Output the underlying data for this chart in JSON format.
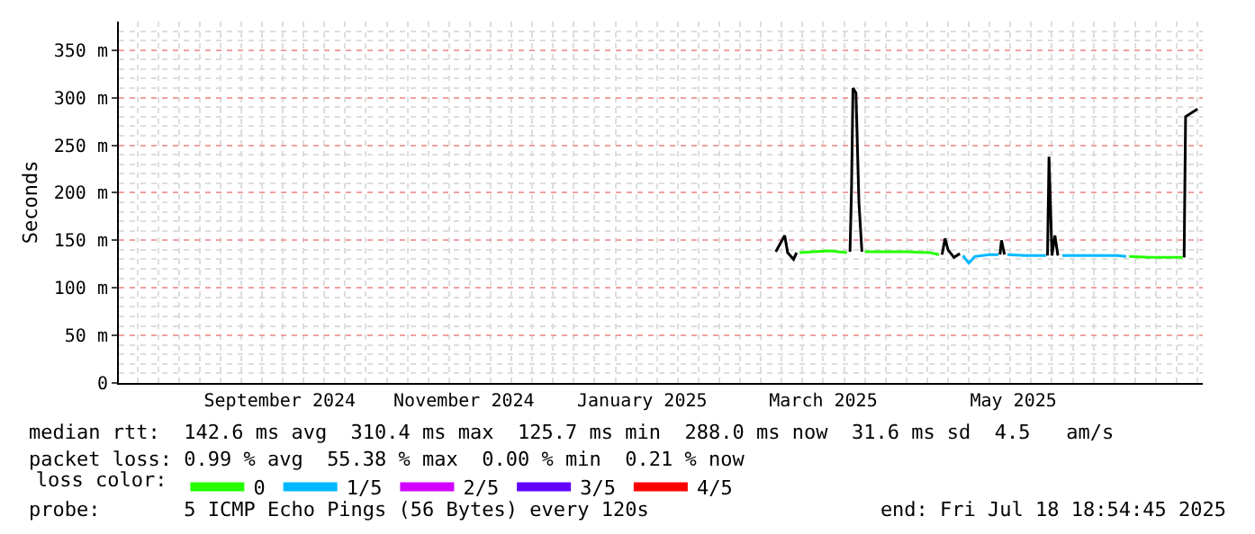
{
  "chart_data": {
    "type": "line",
    "ylabel": "Seconds",
    "legend_title": "loss color:",
    "legend": "bottom",
    "grid": true,
    "line_style": "solid",
    "xlim": [
      "2024-07-18T18:54",
      "2025-07-18T18:54"
    ],
    "xticks": [
      {
        "value": "2024-09-11",
        "label": "September 2024"
      },
      {
        "value": "2024-11-12",
        "label": "November 2024"
      },
      {
        "value": "2025-01-11",
        "label": "January 2025"
      },
      {
        "value": "2025-03-13",
        "label": "March 2025"
      },
      {
        "value": "2025-05-16",
        "label": "May 2025"
      }
    ],
    "ylim": [
      0,
      380
    ],
    "yticks": [
      0,
      {
        "value": 50,
        "label": "50 m"
      },
      {
        "value": 100,
        "label": "100 m"
      },
      {
        "value": 150,
        "label": "150 m"
      },
      {
        "value": 200,
        "label": "200 m"
      },
      {
        "value": 250,
        "label": "250 m"
      },
      {
        "value": 300,
        "label": "300 m"
      },
      {
        "value": 350,
        "label": "350 m"
      }
    ],
    "series": [
      {
        "color": "#000000",
        "x": [
          "2025-02-25",
          "2025-02-28",
          "2025-03-01",
          "2025-03-03",
          "2025-03-04",
          "2025-03-05",
          "2025-03-22",
          "2025-03-22T12:00",
          "2025-03-23",
          "2025-03-24",
          "2025-03-25",
          "2025-03-26",
          "2025-03-27",
          "2025-04-22",
          "2025-04-23",
          "2025-04-24",
          "2025-04-26",
          "2025-04-28",
          "2025-04-29",
          "2025-05-11T12:00",
          "2025-05-12",
          "2025-05-13",
          "2025-05-14",
          "2025-05-27T12:00",
          "2025-05-28",
          "2025-05-29",
          "2025-05-30",
          "2025-05-31",
          "2025-06-01",
          "2025-07-12T12:00",
          "2025-07-13",
          "2025-07-17"
        ],
        "values": [
          138,
          155,
          137,
          130,
          137,
          null,
          138,
          204,
          310,
          305,
          190,
          138,
          null,
          135,
          152,
          140,
          132,
          136,
          null,
          135,
          150,
          135,
          null,
          134,
          238,
          134,
          155,
          134,
          null,
          132,
          280,
          288
        ]
      },
      {
        "name": "0",
        "color": "#26ff00",
        "x": [
          "2025-03-05",
          "2025-03-10",
          "2025-03-15",
          "2025-03-21",
          "2025-03-22",
          "2025-03-27",
          "2025-04-01",
          "2025-04-10",
          "2025-04-18",
          "2025-04-21",
          "2025-04-22",
          "2025-06-24",
          "2025-07-01",
          "2025-07-12"
        ],
        "values": [
          137,
          138,
          139,
          137,
          null,
          138,
          138,
          138,
          137,
          135,
          null,
          133,
          132,
          132
        ]
      },
      {
        "name": "1/5",
        "color": "#00b8ff",
        "x": [
          "2025-04-29",
          "2025-05-01",
          "2025-05-03",
          "2025-05-08",
          "2025-05-11",
          "2025-05-12",
          "2025-05-14",
          "2025-05-20",
          "2025-05-27",
          "2025-05-28",
          "2025-06-01T12:00",
          "2025-06-10",
          "2025-06-20",
          "2025-06-23"
        ],
        "values": [
          134,
          126,
          133,
          135,
          135,
          null,
          135,
          134,
          134,
          null,
          134,
          134,
          134,
          133
        ]
      },
      {
        "name": "2/5",
        "color": "#d100ff"
      },
      {
        "name": "3/5",
        "color": "#6000ff"
      },
      {
        "name": "4/5",
        "color": "#ff0000"
      }
    ],
    "annotations": [
      "median rtt:  142.6 ms avg  310.4 ms max  125.7 ms min  288.0 ms now  31.6 ms sd  4.5   am/s",
      "packet loss: 0.99 % avg  55.38 % max  0.00 % min  0.21 % now",
      "probe:       5 ICMP Echo Pings (56 Bytes) every 120s",
      "end: Fri Jul 18 18:54:45 2025"
    ]
  }
}
